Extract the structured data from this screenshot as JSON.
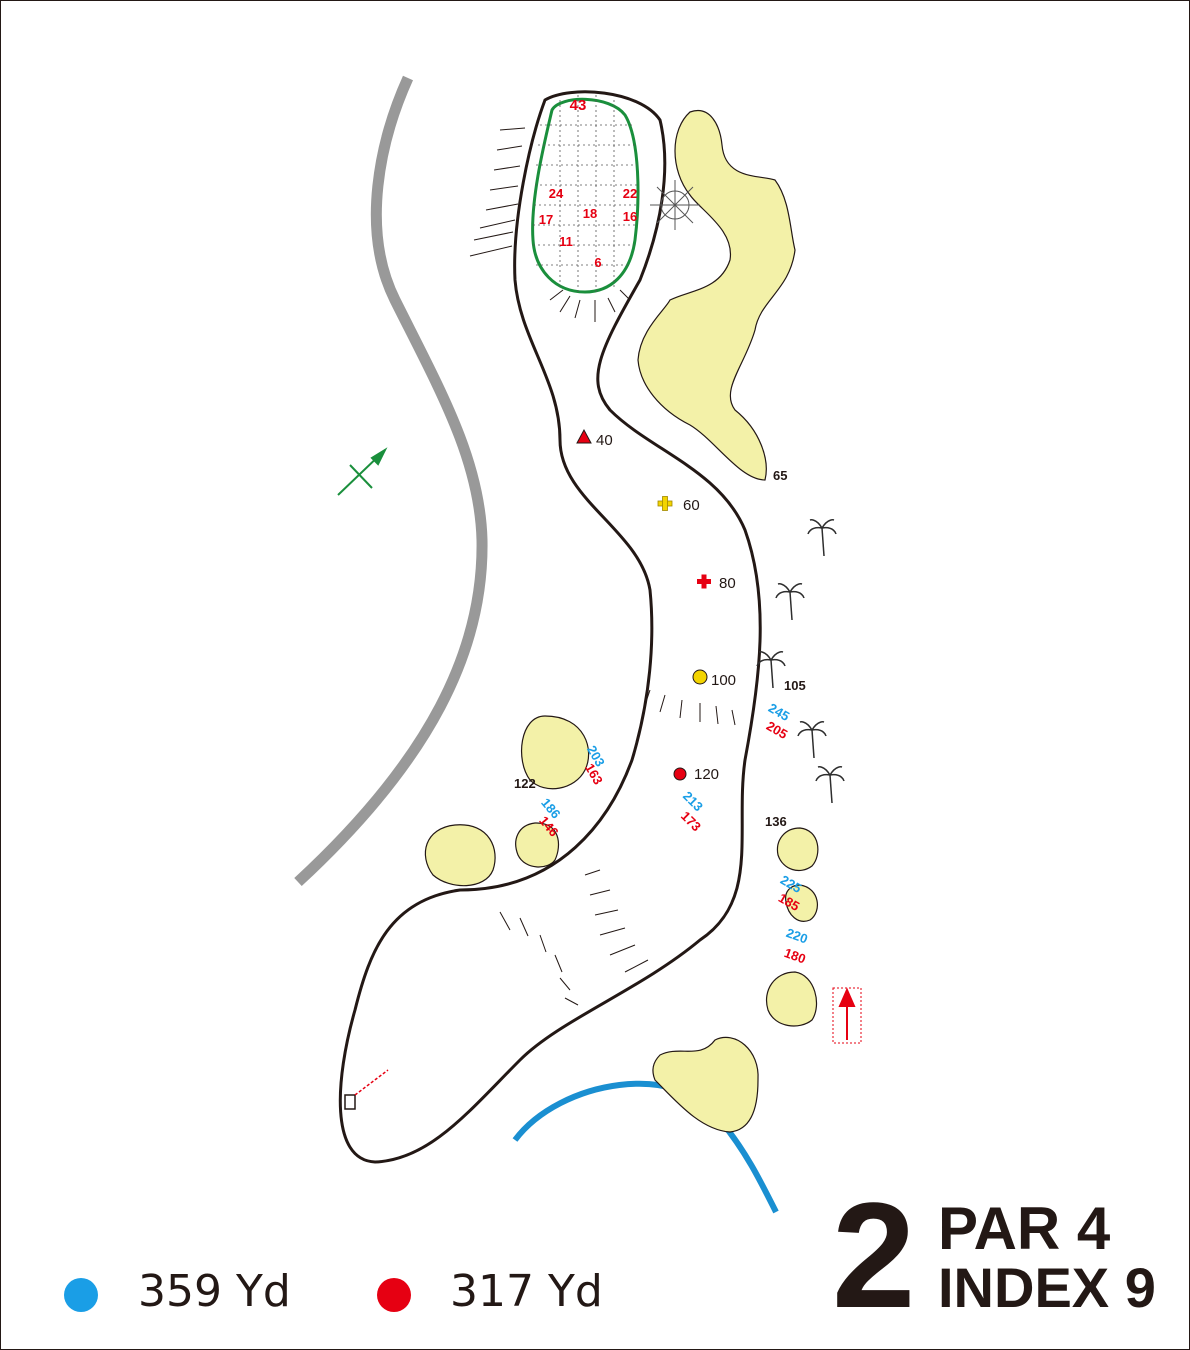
{
  "hole": {
    "number": "2",
    "par_label": "PAR 4",
    "index_label": "INDEX 9"
  },
  "tees": [
    {
      "color": "#1a9ee6",
      "distance_label": "359 Yd"
    },
    {
      "color": "#e60012",
      "distance_label": "317 Yd"
    }
  ],
  "green": {
    "depth": "43",
    "pin_grid": [
      "24",
      "22",
      "17",
      "18",
      "16",
      "11",
      "6"
    ]
  },
  "markers": {
    "triangle": "40",
    "plus_yellow": "60",
    "plus_red": "80",
    "circle_yellow": "100",
    "circle_red": "120"
  },
  "hazard_distances": {
    "left_bunker_black": "122",
    "left_bunker_blue_1": "203",
    "left_bunker_red_1": "163",
    "left_bunker_blue_2": "186",
    "left_bunker_red_2": "146",
    "fairway_blue": "213",
    "fairway_red": "173",
    "right_black_1": "65",
    "right_black_2": "105",
    "right_blue_1": "245",
    "right_red_1": "205",
    "right_black_3": "136",
    "right_blue_2": "225",
    "right_red_2": "185",
    "right_blue_3": "220",
    "right_red_3": "180"
  },
  "colors": {
    "outline": "#231815",
    "sand": "#f3f1a8",
    "water": "#1a8fd1",
    "path": "#999999",
    "green_edge": "#1a8f3c",
    "red_text": "#e60012",
    "blue_text": "#1a9ee6"
  },
  "icons": [
    "compass-icon",
    "palm-tree-icon",
    "tee-marker-icon",
    "north-arrow-icon"
  ]
}
